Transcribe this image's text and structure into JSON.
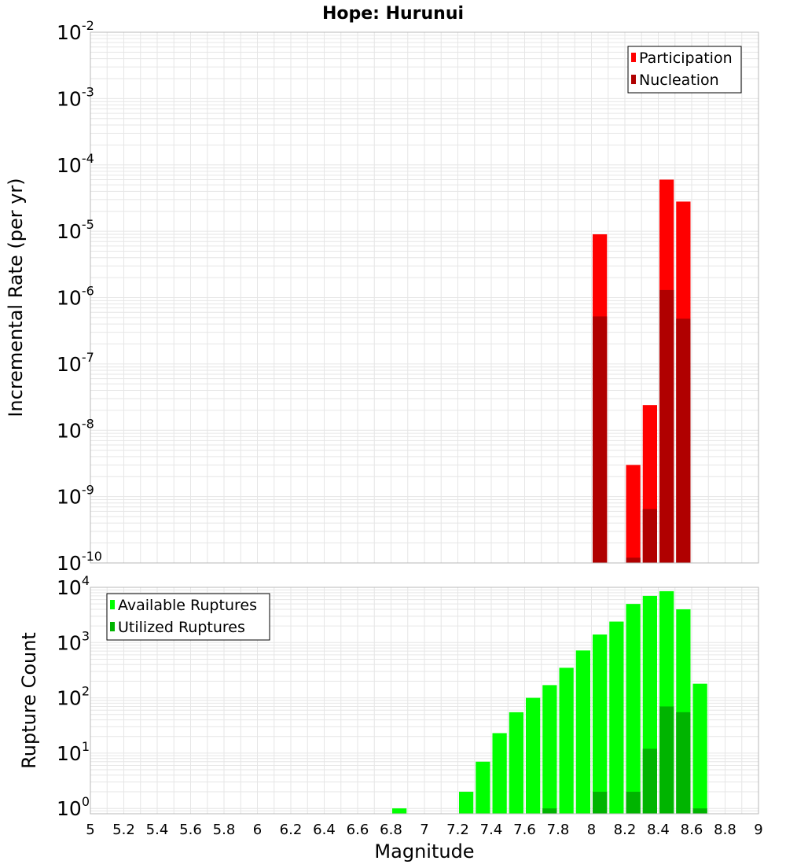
{
  "title": "Hope: Hurunui",
  "colors": {
    "participation": "#ff0000",
    "nucleation": "#b00000",
    "available": "#00ff00",
    "utilized": "#00b400",
    "grid": "#e6e6e6",
    "frame": "#b8b8b8"
  },
  "chart_data": [
    {
      "type": "bar",
      "ylabel": "Incremental Rate (per yr)",
      "xlabel": "",
      "yscale": "log",
      "ylim": [
        1e-10,
        0.01
      ],
      "xlim": [
        5,
        9
      ],
      "grid": true,
      "legend_position": "top-right",
      "y_tick_exponents": [
        -10,
        -9,
        -8,
        -7,
        -6,
        -5,
        -4,
        -3,
        -2
      ],
      "bar_width": 0.1,
      "series": [
        {
          "name": "Participation",
          "x": [
            8.05,
            8.25,
            8.35,
            8.45,
            8.55
          ],
          "values": [
            9e-06,
            3e-09,
            2.4e-08,
            6e-05,
            2.8e-05
          ]
        },
        {
          "name": "Nucleation",
          "x": [
            8.05,
            8.25,
            8.35,
            8.45,
            8.55
          ],
          "values": [
            5.2e-07,
            1.2e-10,
            6.5e-10,
            1.3e-06,
            4.8e-07
          ]
        }
      ]
    },
    {
      "type": "bar",
      "ylabel": "Rupture Count",
      "xlabel": "Magnitude",
      "yscale": "log",
      "ylim": [
        0.8,
        10000
      ],
      "xlim": [
        5,
        9
      ],
      "grid": true,
      "legend_position": "top-left",
      "y_tick_exponents": [
        0,
        1,
        2,
        3,
        4
      ],
      "x_ticks": [
        "5",
        "5.2",
        "5.4",
        "5.6",
        "5.8",
        "6",
        "6.2",
        "6.4",
        "6.6",
        "6.8",
        "7",
        "7.2",
        "7.4",
        "7.6",
        "7.8",
        "8",
        "8.2",
        "8.4",
        "8.6",
        "8.8",
        "9"
      ],
      "bar_width": 0.1,
      "series": [
        {
          "name": "Available Ruptures",
          "x": [
            6.85,
            7.25,
            7.35,
            7.45,
            7.55,
            7.65,
            7.75,
            7.85,
            7.95,
            8.05,
            8.15,
            8.25,
            8.35,
            8.45,
            8.55,
            8.65
          ],
          "values": [
            1,
            2,
            7,
            23,
            55,
            100,
            170,
            350,
            720,
            1400,
            2400,
            5000,
            7000,
            8500,
            4000,
            180
          ]
        },
        {
          "name": "Utilized Ruptures",
          "x": [
            7.75,
            8.05,
            8.25,
            8.35,
            8.45,
            8.55,
            8.65
          ],
          "values": [
            1,
            2,
            2,
            12,
            70,
            55,
            1
          ]
        }
      ]
    }
  ]
}
